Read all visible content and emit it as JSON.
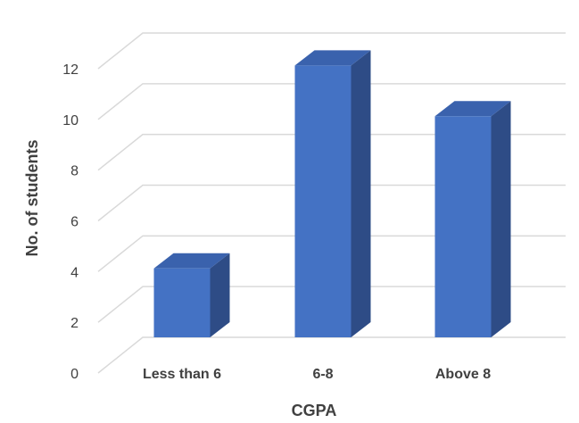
{
  "chart_data": {
    "type": "bar",
    "style": "3d-column",
    "categories": [
      "Less than 6",
      "6-8",
      "Above 8"
    ],
    "series": [
      {
        "values": [
          3,
          11,
          9
        ]
      }
    ],
    "title": "",
    "xlabel": "CGPA",
    "ylabel": "No. of students",
    "ylim": [
      0,
      12
    ],
    "yticks": [
      0,
      2,
      4,
      6,
      8,
      10,
      12
    ],
    "grid": true,
    "legend": "none",
    "colors": {
      "front": "#4472C4",
      "side": "#2E4C86",
      "top": "#3A62AD",
      "grid": "#D9D9D9",
      "text": "#404040"
    }
  }
}
